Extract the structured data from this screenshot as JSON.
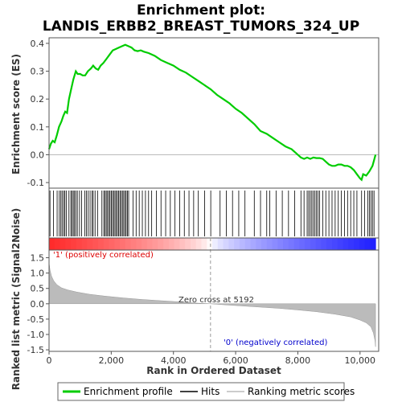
{
  "chart_data": {
    "type": "line",
    "title_line1": "Enrichment plot:",
    "title_line2": "LANDIS_ERBB2_BREAST_TUMORS_324_UP",
    "es_panel": {
      "ylabel": "Enrichment score (ES)",
      "ylim": [
        -0.12,
        0.42
      ],
      "yticks": [
        "0.4",
        "0.3",
        "0.2",
        "0.1",
        "0.0",
        "-0.1"
      ],
      "ytick_values": [
        0.4,
        0.3,
        0.2,
        0.1,
        0.0,
        -0.1
      ],
      "xlim": [
        0,
        10600
      ],
      "curve_color": "#00cc00",
      "profile": [
        [
          0,
          0.02
        ],
        [
          60,
          0.04
        ],
        [
          120,
          0.05
        ],
        [
          180,
          0.045
        ],
        [
          250,
          0.07
        ],
        [
          320,
          0.1
        ],
        [
          400,
          0.12
        ],
        [
          460,
          0.14
        ],
        [
          520,
          0.155
        ],
        [
          580,
          0.15
        ],
        [
          640,
          0.2
        ],
        [
          700,
          0.23
        ],
        [
          780,
          0.27
        ],
        [
          860,
          0.3
        ],
        [
          920,
          0.29
        ],
        [
          1000,
          0.29
        ],
        [
          1080,
          0.285
        ],
        [
          1160,
          0.285
        ],
        [
          1250,
          0.3
        ],
        [
          1350,
          0.31
        ],
        [
          1420,
          0.32
        ],
        [
          1500,
          0.31
        ],
        [
          1580,
          0.305
        ],
        [
          1660,
          0.32
        ],
        [
          1750,
          0.33
        ],
        [
          1850,
          0.345
        ],
        [
          1950,
          0.36
        ],
        [
          2050,
          0.375
        ],
        [
          2150,
          0.38
        ],
        [
          2250,
          0.385
        ],
        [
          2350,
          0.39
        ],
        [
          2450,
          0.395
        ],
        [
          2550,
          0.39
        ],
        [
          2650,
          0.385
        ],
        [
          2750,
          0.375
        ],
        [
          2850,
          0.372
        ],
        [
          2950,
          0.375
        ],
        [
          3050,
          0.37
        ],
        [
          3200,
          0.365
        ],
        [
          3400,
          0.355
        ],
        [
          3600,
          0.34
        ],
        [
          3800,
          0.33
        ],
        [
          4000,
          0.32
        ],
        [
          4200,
          0.305
        ],
        [
          4400,
          0.295
        ],
        [
          4600,
          0.28
        ],
        [
          4800,
          0.265
        ],
        [
          5000,
          0.25
        ],
        [
          5200,
          0.235
        ],
        [
          5400,
          0.215
        ],
        [
          5600,
          0.2
        ],
        [
          5800,
          0.185
        ],
        [
          6000,
          0.165
        ],
        [
          6200,
          0.15
        ],
        [
          6400,
          0.13
        ],
        [
          6600,
          0.11
        ],
        [
          6800,
          0.085
        ],
        [
          7000,
          0.075
        ],
        [
          7200,
          0.06
        ],
        [
          7400,
          0.045
        ],
        [
          7600,
          0.03
        ],
        [
          7800,
          0.02
        ],
        [
          8000,
          0.0
        ],
        [
          8100,
          -0.01
        ],
        [
          8200,
          -0.015
        ],
        [
          8300,
          -0.01
        ],
        [
          8400,
          -0.015
        ],
        [
          8500,
          -0.01
        ],
        [
          8600,
          -0.012
        ],
        [
          8700,
          -0.012
        ],
        [
          8800,
          -0.015
        ],
        [
          8900,
          -0.025
        ],
        [
          9000,
          -0.035
        ],
        [
          9100,
          -0.04
        ],
        [
          9200,
          -0.04
        ],
        [
          9300,
          -0.035
        ],
        [
          9400,
          -0.035
        ],
        [
          9500,
          -0.04
        ],
        [
          9600,
          -0.04
        ],
        [
          9700,
          -0.045
        ],
        [
          9800,
          -0.055
        ],
        [
          9900,
          -0.07
        ],
        [
          10000,
          -0.085
        ],
        [
          10050,
          -0.09
        ],
        [
          10100,
          -0.07
        ],
        [
          10200,
          -0.075
        ],
        [
          10300,
          -0.06
        ],
        [
          10400,
          -0.04
        ],
        [
          10450,
          -0.02
        ],
        [
          10500,
          0.0
        ]
      ]
    },
    "hits_panel": {
      "hits": [
        30,
        140,
        260,
        330,
        380,
        420,
        470,
        510,
        560,
        640,
        700,
        740,
        780,
        820,
        860,
        910,
        980,
        1050,
        1150,
        1200,
        1260,
        1320,
        1380,
        1420,
        1480,
        1560,
        1700,
        1760,
        1800,
        1840,
        1880,
        1920,
        1960,
        2000,
        2040,
        2080,
        2120,
        2160,
        2200,
        2240,
        2280,
        2320,
        2360,
        2400,
        2440,
        2480,
        2520,
        2560,
        2700,
        2800,
        2900,
        3000,
        3100,
        3200,
        3300,
        3450,
        3600,
        3750,
        3900,
        4050,
        4200,
        4350,
        4500,
        4650,
        4800,
        5000,
        5200,
        5500,
        5700,
        5900,
        6100,
        6300,
        6600,
        6800,
        7000,
        7100,
        7300,
        7500,
        7700,
        7900,
        8100,
        8200,
        8300,
        8350,
        8400,
        8450,
        8500,
        8550,
        8600,
        8650,
        8700,
        8800,
        8900,
        9000,
        9100,
        9200,
        9300,
        9400,
        9500,
        9600,
        9700,
        9800,
        9900,
        10050,
        10150,
        10250,
        10300,
        10350,
        10400,
        10450
      ]
    },
    "metric_panel": {
      "ylabel": "Ranked list metric (Signal2Noise)",
      "ylim": [
        -1.55,
        1.75
      ],
      "yticks": [
        "1.5",
        "1.0",
        "0.5",
        "0.0",
        "-0.5",
        "-1.0",
        "-1.5"
      ],
      "ytick_values": [
        1.5,
        1.0,
        0.5,
        0.0,
        -0.5,
        -1.0,
        -1.5
      ],
      "metric": [
        [
          0,
          1.35
        ],
        [
          30,
          1.1
        ],
        [
          80,
          0.9
        ],
        [
          150,
          0.75
        ],
        [
          250,
          0.62
        ],
        [
          400,
          0.52
        ],
        [
          600,
          0.45
        ],
        [
          900,
          0.38
        ],
        [
          1300,
          0.31
        ],
        [
          1800,
          0.25
        ],
        [
          2400,
          0.19
        ],
        [
          3000,
          0.14
        ],
        [
          3600,
          0.1
        ],
        [
          4200,
          0.06
        ],
        [
          4800,
          0.02
        ],
        [
          5192,
          0.0
        ],
        [
          5600,
          -0.03
        ],
        [
          6200,
          -0.07
        ],
        [
          6800,
          -0.11
        ],
        [
          7400,
          -0.15
        ],
        [
          8000,
          -0.2
        ],
        [
          8600,
          -0.26
        ],
        [
          9200,
          -0.34
        ],
        [
          9700,
          -0.43
        ],
        [
          10000,
          -0.53
        ],
        [
          10200,
          -0.62
        ],
        [
          10350,
          -0.75
        ],
        [
          10430,
          -0.95
        ],
        [
          10480,
          -1.2
        ],
        [
          10500,
          -1.4
        ]
      ],
      "positive_label": "'1' (positively correlated)",
      "negative_label": "'0' (negatively correlated)",
      "zero_cross_label": "Zero cross at 5192",
      "zero_cross": 5192,
      "positive_color": "#dd0000",
      "negative_color": "#0000cc"
    },
    "xlabel": "Rank in Ordered Dataset",
    "xticks": [
      "0",
      "2,000",
      "4,000",
      "6,000",
      "8,000",
      "10,000"
    ],
    "xtick_values": [
      0,
      2000,
      4000,
      6000,
      8000,
      10000
    ],
    "xlim": [
      0,
      10600
    ],
    "heatbar_max": 10500,
    "legend": [
      {
        "label": "Enrichment profile",
        "color": "#00cc00"
      },
      {
        "label": "Hits",
        "color": "#000000"
      },
      {
        "label": "Ranking metric scores",
        "color": "#bbbbbb"
      }
    ]
  }
}
